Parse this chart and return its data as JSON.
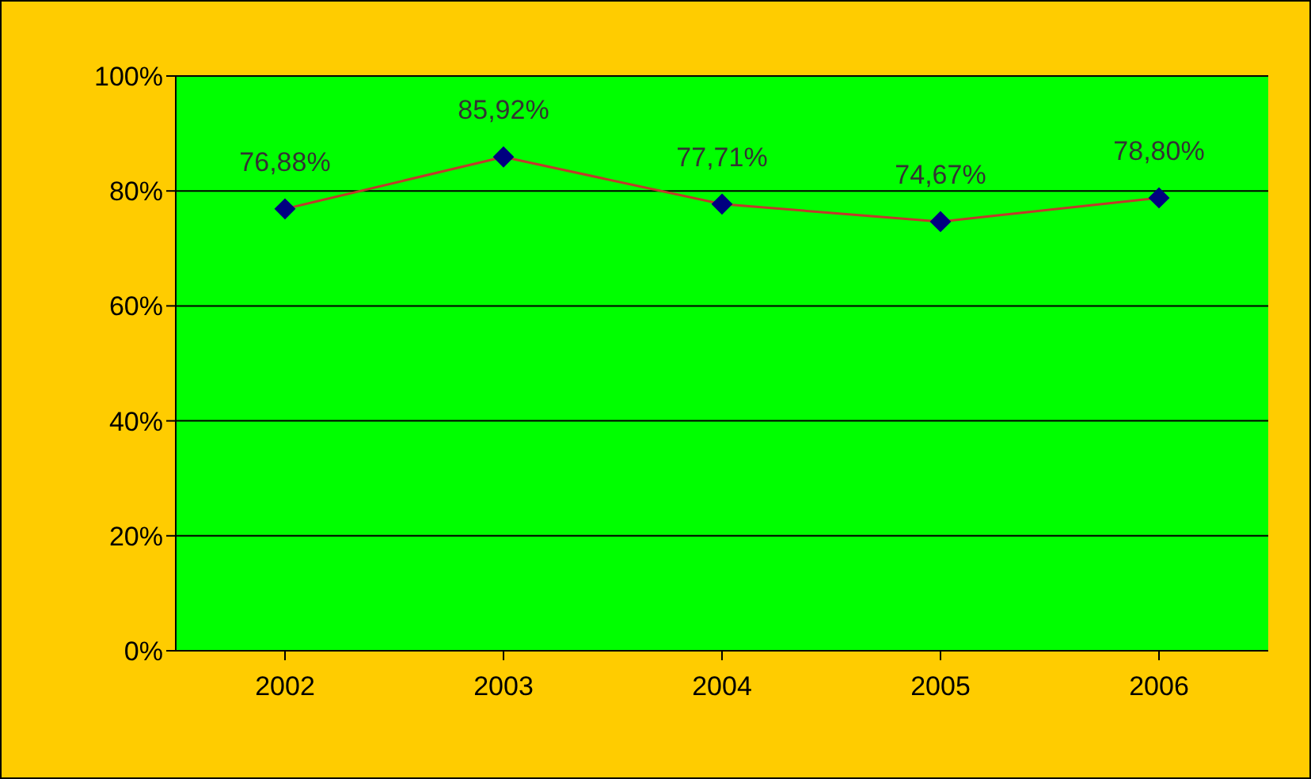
{
  "chart_data": {
    "type": "line",
    "categories": [
      "2002",
      "2003",
      "2004",
      "2005",
      "2006"
    ],
    "series": [
      {
        "color": "#c0392b",
        "values": [
          76.88,
          85.92,
          77.71,
          74.67,
          78.8
        ],
        "value_labels": [
          "76,88%",
          "85,92%",
          "77,71%",
          "74,67%",
          "78,80%"
        ]
      }
    ],
    "ylim": [
      0,
      100
    ],
    "yticks": [
      {
        "value": 0,
        "label": "0%"
      },
      {
        "value": 20,
        "label": "20%"
      },
      {
        "value": 40,
        "label": "40%"
      },
      {
        "value": 60,
        "label": "60%"
      },
      {
        "value": 80,
        "label": "80%"
      },
      {
        "value": 100,
        "label": "100%"
      }
    ],
    "grid": "y",
    "marker": "diamond",
    "line_style": "solid"
  }
}
